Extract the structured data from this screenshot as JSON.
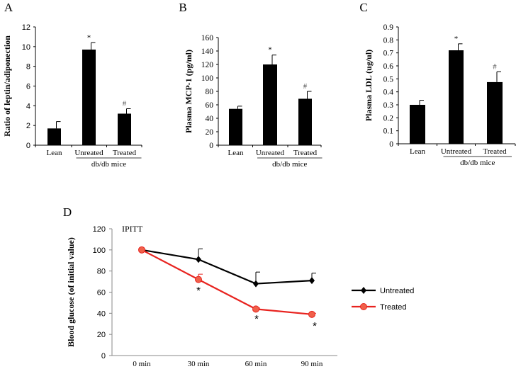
{
  "chart_data": [
    {
      "panel": "A",
      "type": "bar",
      "ylabel": "Ratio of leptin/adiponection",
      "categories": [
        "Lean",
        "Unreated",
        "Treated"
      ],
      "group_label": "db/db mice",
      "values": [
        1.7,
        9.7,
        3.2
      ],
      "errors": [
        0.7,
        0.7,
        0.5
      ],
      "annotations": [
        "",
        "*",
        "#"
      ],
      "ylim": [
        0,
        12
      ],
      "yticks": [
        0,
        2,
        4,
        6,
        8,
        10,
        12
      ]
    },
    {
      "panel": "B",
      "type": "bar",
      "ylabel": "Plasma MCP-1 (pg/ml)",
      "categories": [
        "Lean",
        "Unreated",
        "Treated"
      ],
      "group_label": "db/db mice",
      "values": [
        54,
        120,
        69
      ],
      "errors": [
        4,
        14,
        11
      ],
      "annotations": [
        "",
        "*",
        "#"
      ],
      "ylim": [
        0,
        160
      ],
      "yticks": [
        0,
        20,
        40,
        60,
        80,
        100,
        120,
        140,
        160
      ]
    },
    {
      "panel": "C",
      "type": "bar",
      "ylabel": "Plasma LDL (ug/ul)",
      "categories": [
        "Lean",
        "Untreated",
        "Treated"
      ],
      "group_label": "db/db mice",
      "values": [
        0.3,
        0.72,
        0.475
      ],
      "errors": [
        0.035,
        0.05,
        0.08
      ],
      "annotations": [
        "",
        "*",
        "#"
      ],
      "ylim": [
        0,
        0.9
      ],
      "yticks": [
        "0",
        "0.1",
        "0.2",
        "0.3",
        "0.4",
        "0.5",
        "0.6",
        "0.7",
        "0.8",
        "0.9"
      ]
    },
    {
      "panel": "D",
      "type": "line",
      "title": "IPITT",
      "ylabel": "Blood glucose (of initial value)",
      "categories": [
        "0 min",
        "30 min",
        "60 min",
        "90 min"
      ],
      "ylim": [
        0,
        120
      ],
      "yticks": [
        0,
        20,
        40,
        60,
        80,
        100,
        120
      ],
      "legend": "right",
      "series": [
        {
          "name": "Untreated",
          "values": [
            100,
            91,
            68,
            71
          ],
          "errors": [
            0,
            10,
            11,
            7
          ],
          "color": "#000000",
          "marker": "diamond"
        },
        {
          "name": "Treated",
          "values": [
            100,
            72,
            44,
            39
          ],
          "errors": [
            0,
            5,
            1,
            1
          ],
          "color": "#e8231f",
          "marker": "circle"
        }
      ],
      "annotations": [
        "",
        "*",
        "*",
        "*"
      ]
    }
  ]
}
